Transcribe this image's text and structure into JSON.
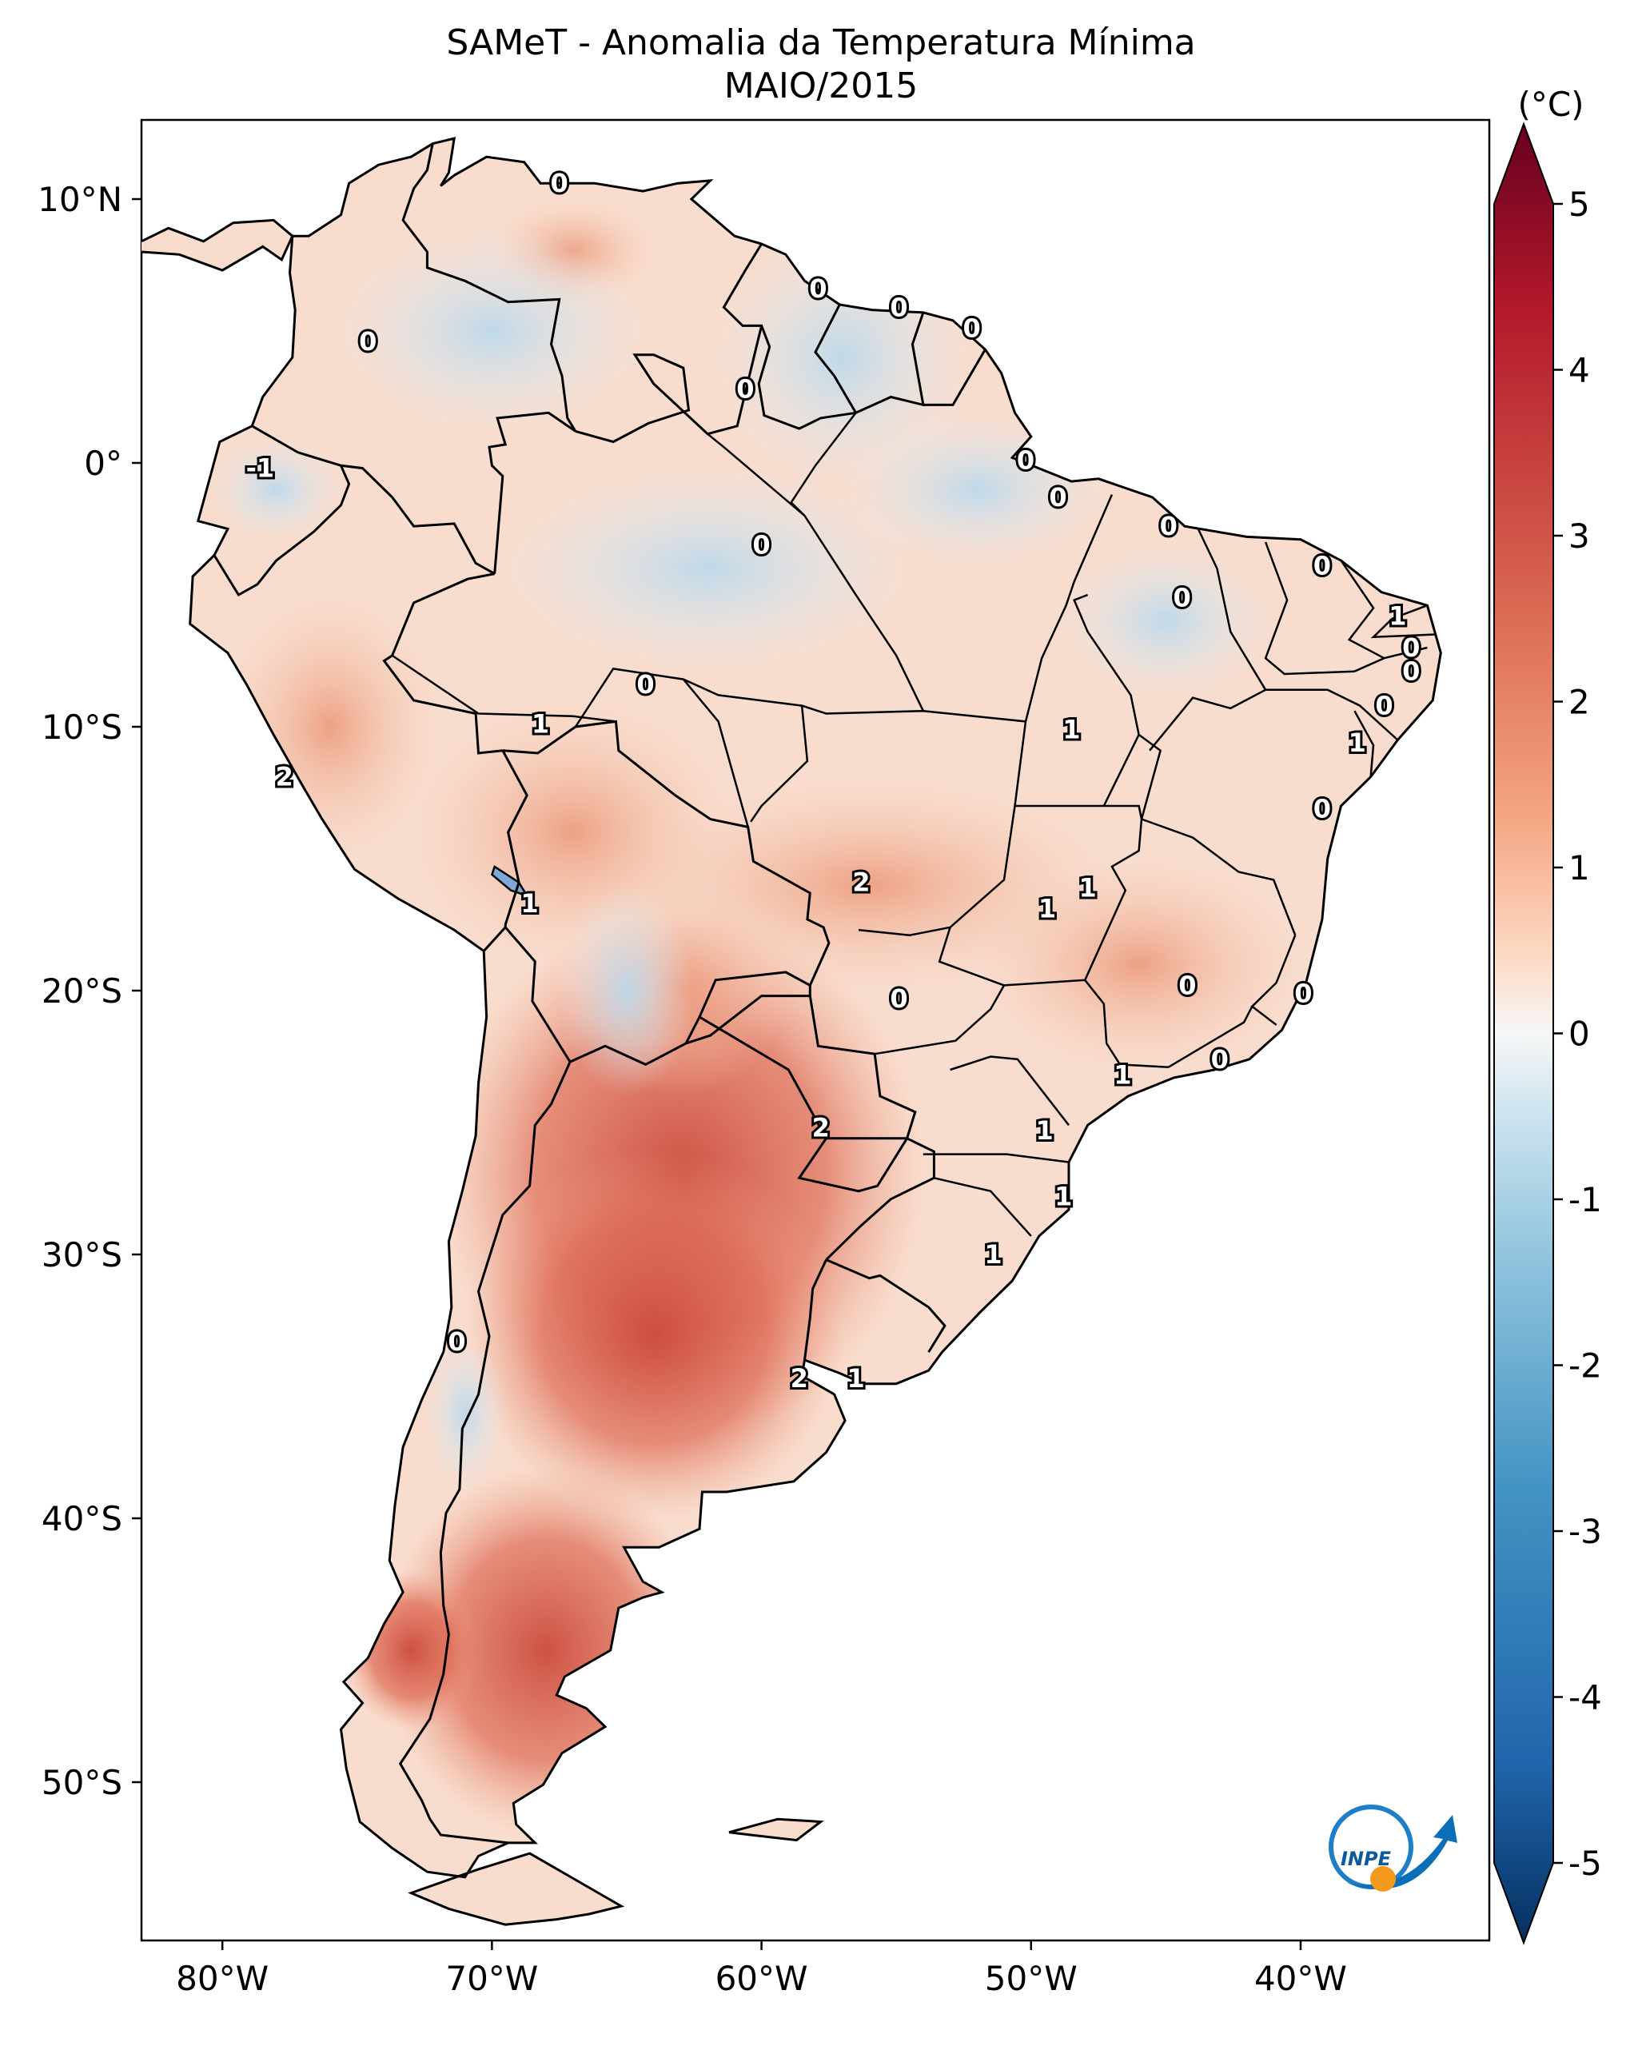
{
  "title": "SAMeT - Anomalia da Temperatura Mínima",
  "subtitle": "MAIO/2015",
  "colorbar": {
    "unit": "(°C)",
    "ticks": [
      "5",
      "4",
      "3",
      "2",
      "1",
      "0",
      "-1",
      "-2",
      "-3",
      "-4",
      "-5"
    ],
    "range": [
      -5,
      5
    ]
  },
  "axes": {
    "longitude_ticks": [
      "80°W",
      "70°W",
      "60°W",
      "50°W",
      "40°W"
    ],
    "latitude_ticks": [
      "10°N",
      "0°",
      "10°S",
      "20°S",
      "30°S",
      "40°S",
      "50°S"
    ],
    "lon_range": [
      -83,
      -33
    ],
    "lat_range": [
      -56,
      13
    ]
  },
  "contour_labels": [
    {
      "text": "0",
      "lon": -67.5,
      "lat": 10.6
    },
    {
      "text": "0",
      "lon": -74.6,
      "lat": 4.6
    },
    {
      "text": "0",
      "lon": -57.9,
      "lat": 6.6
    },
    {
      "text": "0",
      "lon": -54.9,
      "lat": 5.9
    },
    {
      "text": "0",
      "lon": -52.2,
      "lat": 5.1
    },
    {
      "text": "0",
      "lon": -60.6,
      "lat": 2.8
    },
    {
      "text": "0",
      "lon": -50.2,
      "lat": 0.1
    },
    {
      "text": "-1",
      "lon": -78.6,
      "lat": -0.2
    },
    {
      "text": "0",
      "lon": -49.0,
      "lat": -1.3
    },
    {
      "text": "0",
      "lon": -60.0,
      "lat": -3.1
    },
    {
      "text": "0",
      "lon": -44.9,
      "lat": -2.4
    },
    {
      "text": "0",
      "lon": -39.2,
      "lat": -3.9
    },
    {
      "text": "0",
      "lon": -44.4,
      "lat": -5.1
    },
    {
      "text": "1",
      "lon": -36.4,
      "lat": -5.8
    },
    {
      "text": "0",
      "lon": -35.9,
      "lat": -7.0
    },
    {
      "text": "0",
      "lon": -35.9,
      "lat": -7.9
    },
    {
      "text": "0",
      "lon": -36.9,
      "lat": -9.2
    },
    {
      "text": "1",
      "lon": -37.9,
      "lat": -10.6
    },
    {
      "text": "0",
      "lon": -64.3,
      "lat": -8.4
    },
    {
      "text": "1",
      "lon": -68.2,
      "lat": -9.9
    },
    {
      "text": "1",
      "lon": -48.5,
      "lat": -10.1
    },
    {
      "text": "2",
      "lon": -77.7,
      "lat": -11.9
    },
    {
      "text": "0",
      "lon": -39.2,
      "lat": -13.1
    },
    {
      "text": "2",
      "lon": -56.3,
      "lat": -15.9
    },
    {
      "text": "1",
      "lon": -47.9,
      "lat": -16.1
    },
    {
      "text": "1",
      "lon": -49.4,
      "lat": -16.9
    },
    {
      "text": "1",
      "lon": -68.6,
      "lat": -16.7
    },
    {
      "text": "0",
      "lon": -54.9,
      "lat": -20.3
    },
    {
      "text": "0",
      "lon": -44.2,
      "lat": -19.8
    },
    {
      "text": "0",
      "lon": -39.9,
      "lat": -20.1
    },
    {
      "text": "1",
      "lon": -46.6,
      "lat": -23.2
    },
    {
      "text": "0",
      "lon": -43.0,
      "lat": -22.6
    },
    {
      "text": "2",
      "lon": -57.8,
      "lat": -25.2
    },
    {
      "text": "1",
      "lon": -49.5,
      "lat": -25.3
    },
    {
      "text": "1",
      "lon": -48.8,
      "lat": -27.8
    },
    {
      "text": "1",
      "lon": -51.4,
      "lat": -30.0
    },
    {
      "text": "0",
      "lon": -71.3,
      "lat": -33.3
    },
    {
      "text": "2",
      "lon": -58.6,
      "lat": -34.7
    },
    {
      "text": "1",
      "lon": -56.5,
      "lat": -34.7
    }
  ]
}
